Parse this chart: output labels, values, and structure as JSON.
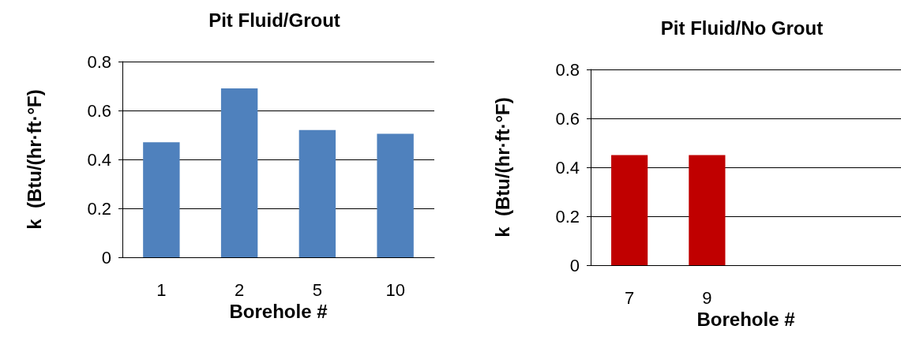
{
  "chart_data": [
    {
      "type": "bar",
      "title": "Pit Fluid/Grout",
      "xlabel": "Borehole #",
      "ylabel": "k  (Btu/(hr·ft·°F)",
      "categories": [
        "1",
        "2",
        "5",
        "10"
      ],
      "values": [
        0.47,
        0.69,
        0.52,
        0.505
      ],
      "color": "#4f81bd",
      "ylim": [
        0,
        0.8
      ],
      "yticks": [
        0,
        0.2,
        0.4,
        0.6,
        0.8
      ],
      "grid": "y"
    },
    {
      "type": "bar",
      "title": "Pit Fluid/No Grout",
      "xlabel": "Borehole #",
      "ylabel": "k  (Btu/(hr·ft·°F)",
      "categories": [
        "7",
        "9",
        null,
        null
      ],
      "values": [
        0.45,
        0.45,
        null,
        null
      ],
      "color": "#c00000",
      "ylim": [
        0,
        0.8
      ],
      "yticks": [
        0,
        0.2,
        0.4,
        0.6,
        0.8
      ],
      "grid": "y"
    }
  ]
}
